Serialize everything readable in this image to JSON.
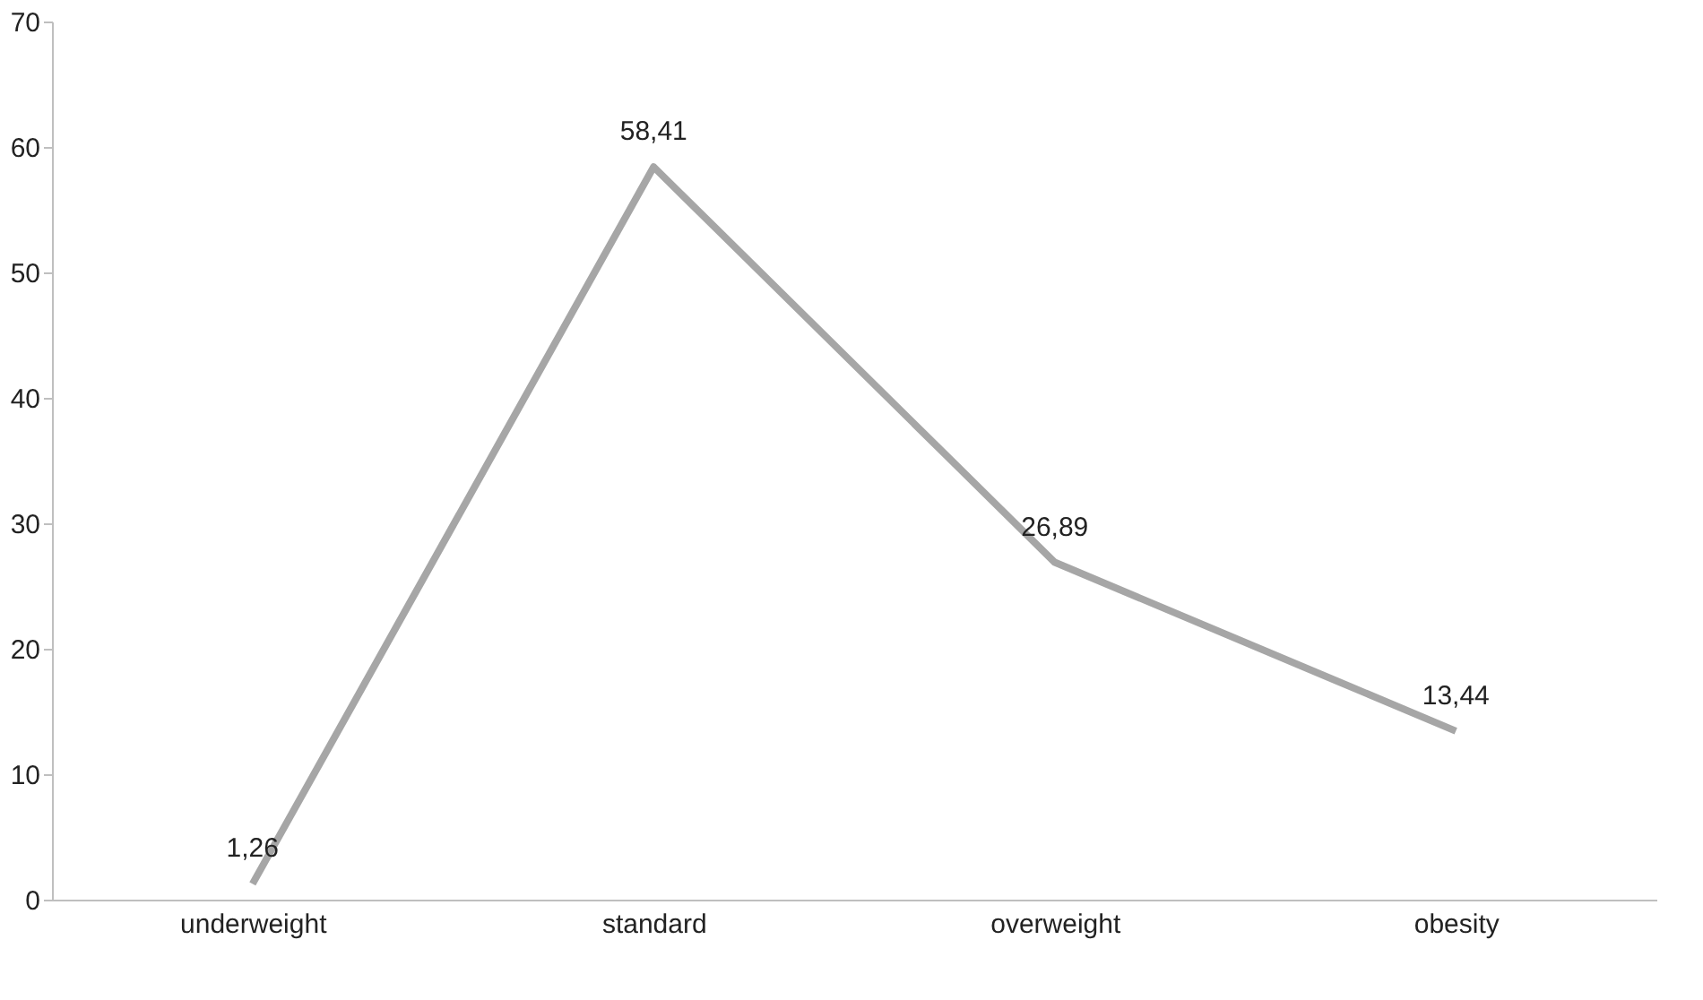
{
  "chart_data": {
    "type": "line",
    "categories": [
      "underweight",
      "standard",
      "overweight",
      "obesity"
    ],
    "series": [
      {
        "color": "#a6a6a6",
        "values": [
          1.26,
          58.41,
          26.89,
          13.44
        ],
        "value_labels": [
          "1,26",
          "58,41",
          "26,89",
          "13,44"
        ]
      }
    ],
    "ylim": [
      0,
      70
    ],
    "yticks": [
      0,
      10,
      20,
      30,
      40,
      50,
      60,
      70
    ],
    "grid": false,
    "marker": "none",
    "line_style": "solid"
  }
}
